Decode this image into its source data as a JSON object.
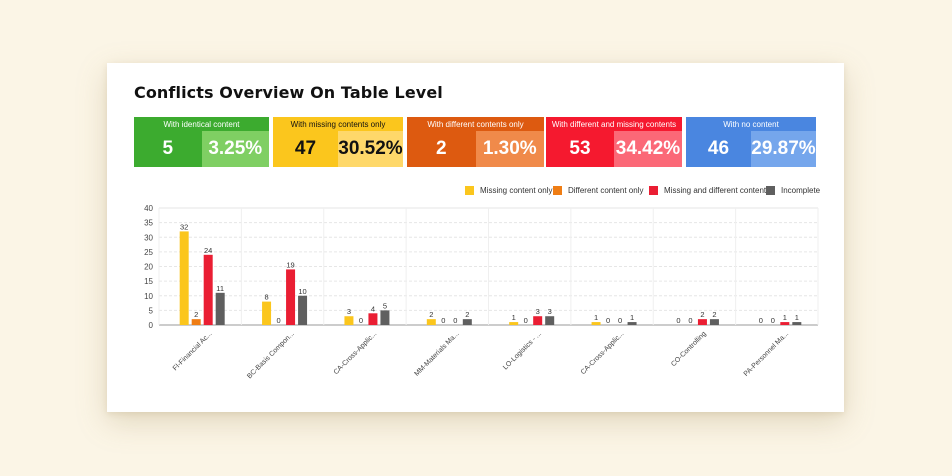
{
  "title": "Conflicts Overview On Table Level",
  "tiles": [
    {
      "label": "With identical content",
      "count": "5",
      "percent": "3.25%",
      "color": "#3cab2f",
      "accent": "#7fcf63",
      "text": "#ffffff",
      "pct_text": "#ffffff"
    },
    {
      "label": "With missing contents only",
      "count": "47",
      "percent": "30.52%",
      "color": "#fbc61d",
      "accent": "#fed86a",
      "text": "#111111",
      "pct_text": "#111111"
    },
    {
      "label": "With different contents only",
      "count": "2",
      "percent": "1.30%",
      "color": "#dd5a10",
      "accent": "#f08a4a",
      "text": "#ffffff",
      "pct_text": "#ffffff"
    },
    {
      "label": "With different and missing contents",
      "count": "53",
      "percent": "34.42%",
      "color": "#f5192f",
      "accent": "#fb6877",
      "text": "#ffffff",
      "pct_text": "#ffffff"
    },
    {
      "label": "With no content",
      "count": "46",
      "percent": "29.87%",
      "color": "#4a86e0",
      "accent": "#75a6ec",
      "text": "#ffffff",
      "pct_text": "#ffffff"
    }
  ],
  "chart_data": {
    "type": "bar",
    "categories": [
      "FI-Financial Ac...",
      "BC-Basis Compon...",
      "CA-Cross-Applic...",
      "MM-Materials Ma...",
      "LO-Logistics - ...",
      "CA-Cross-Applic...",
      "CO-Controlling",
      "PA-Personnel Ma..."
    ],
    "series": [
      {
        "name": "Missing content only",
        "color": "#fbc61d",
        "values": [
          32,
          8,
          3,
          2,
          1,
          1,
          0,
          0
        ]
      },
      {
        "name": "Different content only",
        "color": "#ef7d14",
        "values": [
          2,
          0,
          0,
          0,
          0,
          0,
          0,
          0
        ]
      },
      {
        "name": "Missing and different content",
        "color": "#ea1e33",
        "values": [
          24,
          19,
          4,
          0,
          3,
          0,
          2,
          1
        ]
      },
      {
        "name": "Incomplete",
        "color": "#5f5f5f",
        "values": [
          11,
          10,
          5,
          2,
          3,
          1,
          2,
          1
        ]
      }
    ],
    "ylim": [
      0,
      40
    ],
    "yticks": [
      0,
      5,
      10,
      15,
      20,
      25,
      30,
      35,
      40
    ],
    "grid": true,
    "legend": "top-right"
  }
}
